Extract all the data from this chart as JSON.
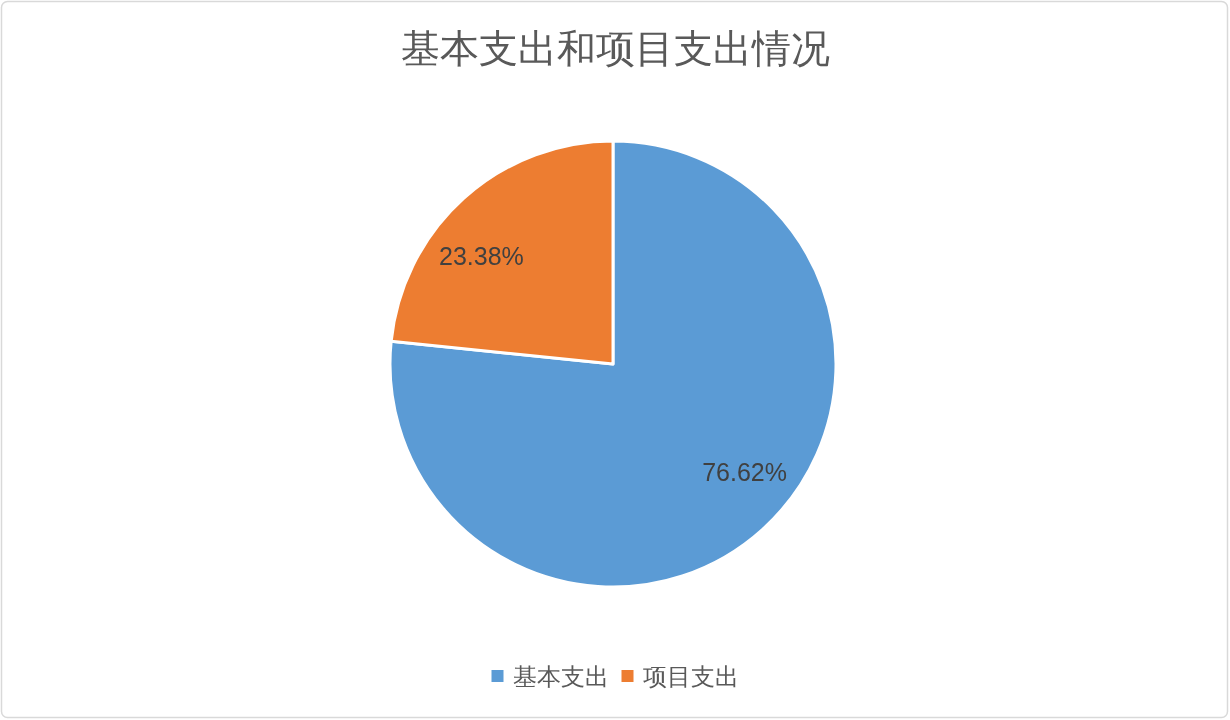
{
  "chart_data": {
    "type": "pie",
    "title": "基本支出和项目支出情况",
    "categories": [
      "基本支出",
      "项目支出"
    ],
    "values": [
      76.62,
      23.38
    ],
    "colors": [
      "#5b9bd5",
      "#ed7d31"
    ],
    "value_labels": [
      "76.62%",
      "23.38%"
    ],
    "legend": "bottom"
  }
}
